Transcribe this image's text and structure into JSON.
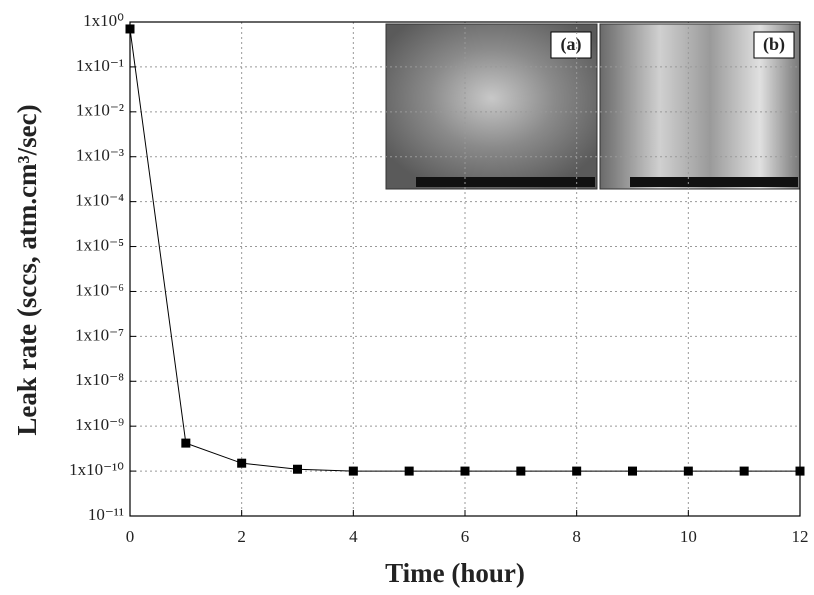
{
  "chart_data": {
    "type": "line",
    "xlabel": "Time (hour)",
    "ylabel": "Leak rate (sccs, atm.cm³/sec)",
    "x": [
      0,
      1,
      2,
      3,
      4,
      5,
      6,
      7,
      8,
      9,
      10,
      11,
      12
    ],
    "values": [
      0.7,
      4.2e-10,
      1.5e-10,
      1.1e-10,
      1e-10,
      1e-10,
      1e-10,
      1e-10,
      1e-10,
      1e-10,
      1e-10,
      1e-10,
      1e-10
    ],
    "color": "#000000",
    "xlim": [
      0,
      12
    ],
    "xticks": [
      0,
      2,
      4,
      6,
      8,
      10,
      12
    ],
    "ylim": [
      1e-11,
      1
    ],
    "log_y": true,
    "yticks": [
      {
        "value": 1,
        "label": "1x10⁰"
      },
      {
        "value": 0.1,
        "label": "1x10⁻¹"
      },
      {
        "value": 0.01,
        "label": "1x10⁻²"
      },
      {
        "value": 0.001,
        "label": "1x10⁻³"
      },
      {
        "value": 0.0001,
        "label": "1x10⁻⁴"
      },
      {
        "value": 1e-05,
        "label": "1x10⁻⁵"
      },
      {
        "value": 1e-06,
        "label": "1x10⁻⁶"
      },
      {
        "value": 1e-07,
        "label": "1x10⁻⁷"
      },
      {
        "value": 1e-08,
        "label": "1x10⁻⁸"
      },
      {
        "value": 1e-09,
        "label": "1x10⁻⁹"
      },
      {
        "value": 1e-10,
        "label": "1x10⁻¹⁰"
      },
      {
        "value": 1e-11,
        "label": "10⁻¹¹"
      }
    ],
    "grid": true,
    "insets": [
      {
        "label": "(a)"
      },
      {
        "label": "(b)"
      }
    ]
  }
}
